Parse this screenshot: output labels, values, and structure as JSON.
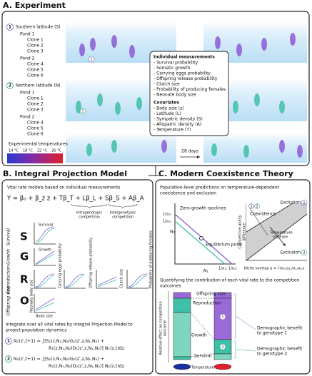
{
  "panel_a": {
    "title": "A. Experiment",
    "groups": [
      {
        "number": "1",
        "label": "Southern latitude (S)",
        "ponds": [
          {
            "name": "Pond 1",
            "clones": [
              "Clone 1",
              "Clone 2",
              "Clone 3"
            ]
          },
          {
            "name": "Pond 2",
            "clones": [
              "Clone 4",
              "Clone 5",
              "Clone 6"
            ]
          }
        ]
      },
      {
        "number": "2",
        "label": "Northern latitude (N)",
        "ponds": [
          {
            "name": "Pond 1",
            "clones": [
              "Clone 1",
              "Clone 2",
              "Clone 3"
            ]
          },
          {
            "name": "Pond 2",
            "clones": [
              "Clone 4",
              "Clone 5",
              "Clone 6"
            ]
          }
        ]
      }
    ],
    "temperature_legend": {
      "title": "Experimental temperatures",
      "labels": [
        "14 °C",
        "18 °C",
        "22 °C",
        "26 °C"
      ]
    },
    "duration": "28 days",
    "measurements": {
      "title": "Individual measurements",
      "items": [
        "- Survival probability",
        "- Somatic growth",
        "- Carrying eggs probability",
        "- Offspring release probability",
        "- Clutch size",
        "- Probability of producing females",
        "- Neonate body size"
      ]
    },
    "covariates": {
      "title": "Covariates",
      "items": [
        "- Body size (z)",
        "- Latitude (L)",
        "- Sympatric density (S)",
        "- Allopatric density (A)",
        "- Temperature (T)"
      ]
    }
  },
  "panel_b": {
    "title": "B. Integral Projection Model",
    "intro": "Vital rate models based on individual measurements",
    "equation": "Y = β₀ + β_z z + Tβ_T + Lβ_L + Sβ_S + Aβ_A",
    "intragenotypic": [
      "Intragenotypic",
      "competition"
    ],
    "intergenotypic": [
      "Intergenotypic",
      "competition"
    ],
    "rows": [
      {
        "letter": "S",
        "label": "Survival"
      },
      {
        "letter": "G",
        "label": "Growth"
      },
      {
        "letter": "R",
        "label": "Reproduction"
      },
      {
        "letter": "O",
        "label": "Offspring size"
      }
    ],
    "plot_labels": [
      "Survival",
      "Growth",
      "Carrying eggs probability",
      "Offspring release probability",
      "Clutch size",
      "Probability of producing females",
      "Neonate body size",
      "Body size"
    ],
    "integrate": [
      "Integrate over all vital rates by Integral Projection Model to",
      "project population dynamics"
    ],
    "equations": [
      {
        "number": "1",
        "lines": [
          "N₁(z′,t+1) = ∫[S₁(z,N₁,N₂)G₁(z′,z,N₁,N₂) +",
          "R₁(z,N₁,N₂)D₁(z′,z,N₁,N₂)] N₁(z,t)dz"
        ]
      },
      {
        "number": "2",
        "lines": [
          "N₂(z′,t+1) = ∫[S₂(z,N₁,N₂)G₂(z′,z,N₁,N₂) +",
          "R₂(z,N₁,N₂)D₂(z′,z,N₁,N₂)] N₂(z,t)dz"
        ]
      }
    ]
  },
  "panel_c": {
    "title": "C. Modern Coexistence Theory",
    "intro": [
      "Population-level predictions on temperature-dependent",
      "coexistence and exclusion"
    ],
    "isoclines": "Zero-growth isoclines",
    "equilibrium": "Equilibrium point",
    "y_axis": "N₂",
    "x_axis": "N₁",
    "ticks": [
      "1/α₂₂",
      "1/α₁₂",
      "1/α₁₁",
      "1/α₂₁"
    ],
    "regions": {
      "exclusion1": "Exclusion",
      "coexistence": "Coexistence",
      "temperature": [
        "Temperature",
        "increase"
      ],
      "exclusion2": "Exclusion"
    },
    "ability": [
      "Competitive ability",
      "difference"
    ],
    "niche": "Niche overlap ρ = √(α₁₂α₂₁/α₁₁α₂₂)",
    "quantify": [
      "Quantifying the contribution of each vital rate to the competition",
      "outcomes"
    ],
    "bar_labels": [
      "Offspring size",
      "Reproduction",
      "Growth",
      "Survival"
    ],
    "effect_axis": [
      "Relative effect on competition",
      "outcome"
    ],
    "temperature_axis": "Temperature",
    "benefit1": [
      "Demographic benefit",
      "to genotype 1"
    ],
    "benefit2": [
      "Demographic benefit",
      "to genotype 2"
    ]
  }
}
